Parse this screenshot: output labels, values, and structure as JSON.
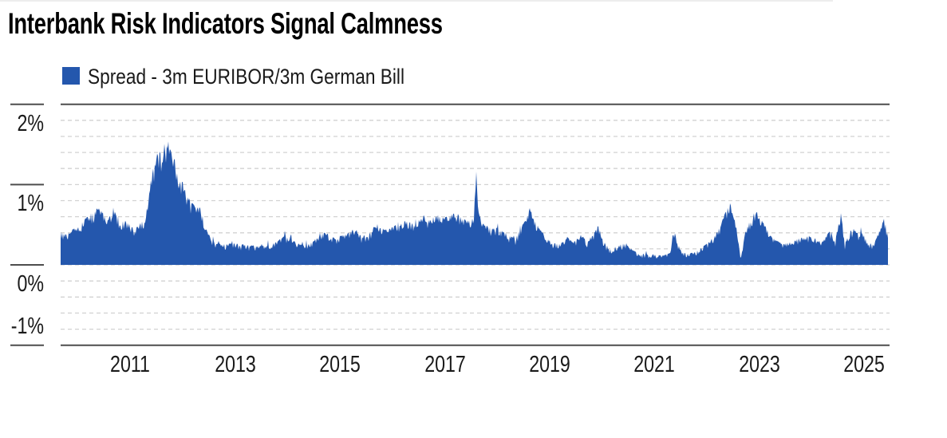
{
  "header": {
    "title": "Interbank Risk Indicators Signal Calmness"
  },
  "legend": {
    "label": "Spread - 3m EURIBOR/3m German Bill",
    "swatch_color": "#2457ad"
  },
  "style": {
    "fill_color": "#2457ad",
    "axis_line_color": "#4d4d4d",
    "gridline_color": "#d2d2d2",
    "text_color": "#1a1a1a",
    "title_color": "#000000",
    "top_rule_color": "#ededed",
    "background": "#ffffff"
  },
  "chart_data": {
    "type": "area",
    "title": "Interbank Risk Indicators Signal Calmness",
    "x_unit": "year",
    "x_range": [
      2009.67,
      2025.45
    ],
    "ylim_pct": [
      -1,
      2
    ],
    "baseline_pct": 0,
    "gridline_step_pct": 0.2,
    "grid": "dashed-horizontal",
    "legend_position": "top-left",
    "y_ticks": [
      {
        "value": 2,
        "label": "2%"
      },
      {
        "value": 1,
        "label": "1%"
      },
      {
        "value": 0,
        "label": "0%"
      },
      {
        "value": -1,
        "label": "-1%"
      }
    ],
    "x_ticks": [
      {
        "value": 2011,
        "label": "2011"
      },
      {
        "value": 2013,
        "label": "2013"
      },
      {
        "value": 2015,
        "label": "2015"
      },
      {
        "value": 2017,
        "label": "2017"
      },
      {
        "value": 2019,
        "label": "2019"
      },
      {
        "value": 2021,
        "label": "2021"
      },
      {
        "value": 2023,
        "label": "2023"
      },
      {
        "value": 2025,
        "label": "2025"
      }
    ],
    "series": [
      {
        "name": "Spread - 3m EURIBOR/3m German Bill",
        "color": "#2457ad",
        "points": [
          [
            2009.67,
            0.42
          ],
          [
            2009.78,
            0.4
          ],
          [
            2009.9,
            0.45
          ],
          [
            2010.0,
            0.48
          ],
          [
            2010.08,
            0.53
          ],
          [
            2010.18,
            0.62
          ],
          [
            2010.3,
            0.66
          ],
          [
            2010.4,
            0.71
          ],
          [
            2010.5,
            0.64
          ],
          [
            2010.58,
            0.55
          ],
          [
            2010.66,
            0.74
          ],
          [
            2010.73,
            0.62
          ],
          [
            2010.82,
            0.53
          ],
          [
            2010.9,
            0.56
          ],
          [
            2011.0,
            0.5
          ],
          [
            2011.1,
            0.45
          ],
          [
            2011.18,
            0.52
          ],
          [
            2011.25,
            0.56
          ],
          [
            2011.3,
            0.62
          ],
          [
            2011.36,
            0.95
          ],
          [
            2011.42,
            1.15
          ],
          [
            2011.48,
            1.32
          ],
          [
            2011.56,
            1.48
          ],
          [
            2011.61,
            1.38
          ],
          [
            2011.67,
            1.5
          ],
          [
            2011.72,
            1.55
          ],
          [
            2011.78,
            1.46
          ],
          [
            2011.86,
            1.3
          ],
          [
            2011.95,
            1.12
          ],
          [
            2012.05,
            0.96
          ],
          [
            2012.13,
            0.82
          ],
          [
            2012.2,
            0.76
          ],
          [
            2012.32,
            0.73
          ],
          [
            2012.4,
            0.58
          ],
          [
            2012.47,
            0.42
          ],
          [
            2012.55,
            0.32
          ],
          [
            2012.65,
            0.27
          ],
          [
            2012.8,
            0.26
          ],
          [
            2013.0,
            0.27
          ],
          [
            2013.2,
            0.25
          ],
          [
            2013.4,
            0.24
          ],
          [
            2013.6,
            0.25
          ],
          [
            2013.78,
            0.28
          ],
          [
            2013.95,
            0.37
          ],
          [
            2014.05,
            0.33
          ],
          [
            2014.2,
            0.27
          ],
          [
            2014.35,
            0.24
          ],
          [
            2014.5,
            0.3
          ],
          [
            2014.62,
            0.4
          ],
          [
            2014.75,
            0.4
          ],
          [
            2014.85,
            0.34
          ],
          [
            2015.0,
            0.36
          ],
          [
            2015.15,
            0.4
          ],
          [
            2015.28,
            0.47
          ],
          [
            2015.4,
            0.36
          ],
          [
            2015.55,
            0.38
          ],
          [
            2015.7,
            0.54
          ],
          [
            2015.78,
            0.46
          ],
          [
            2015.9,
            0.44
          ],
          [
            2016.0,
            0.47
          ],
          [
            2016.12,
            0.52
          ],
          [
            2016.25,
            0.56
          ],
          [
            2016.4,
            0.52
          ],
          [
            2016.6,
            0.62
          ],
          [
            2016.7,
            0.56
          ],
          [
            2016.85,
            0.63
          ],
          [
            2017.0,
            0.59
          ],
          [
            2017.12,
            0.63
          ],
          [
            2017.22,
            0.66
          ],
          [
            2017.32,
            0.58
          ],
          [
            2017.45,
            0.55
          ],
          [
            2017.55,
            0.62
          ],
          [
            2017.6,
            1.1
          ],
          [
            2017.66,
            0.62
          ],
          [
            2017.75,
            0.5
          ],
          [
            2017.9,
            0.46
          ],
          [
            2018.0,
            0.47
          ],
          [
            2018.12,
            0.42
          ],
          [
            2018.25,
            0.36
          ],
          [
            2018.35,
            0.33
          ],
          [
            2018.45,
            0.48
          ],
          [
            2018.55,
            0.56
          ],
          [
            2018.62,
            0.72
          ],
          [
            2018.7,
            0.58
          ],
          [
            2018.8,
            0.46
          ],
          [
            2018.92,
            0.36
          ],
          [
            2019.05,
            0.28
          ],
          [
            2019.2,
            0.26
          ],
          [
            2019.32,
            0.36
          ],
          [
            2019.45,
            0.28
          ],
          [
            2019.6,
            0.38
          ],
          [
            2019.72,
            0.3
          ],
          [
            2019.85,
            0.4
          ],
          [
            2019.93,
            0.5
          ],
          [
            2020.0,
            0.34
          ],
          [
            2020.1,
            0.22
          ],
          [
            2020.22,
            0.17
          ],
          [
            2020.35,
            0.26
          ],
          [
            2020.45,
            0.28
          ],
          [
            2020.55,
            0.2
          ],
          [
            2020.7,
            0.15
          ],
          [
            2020.85,
            0.13
          ],
          [
            2021.0,
            0.13
          ],
          [
            2021.15,
            0.12
          ],
          [
            2021.3,
            0.15
          ],
          [
            2021.37,
            0.44
          ],
          [
            2021.44,
            0.28
          ],
          [
            2021.52,
            0.16
          ],
          [
            2021.65,
            0.14
          ],
          [
            2021.8,
            0.17
          ],
          [
            2021.92,
            0.23
          ],
          [
            2022.05,
            0.3
          ],
          [
            2022.15,
            0.36
          ],
          [
            2022.25,
            0.48
          ],
          [
            2022.33,
            0.62
          ],
          [
            2022.44,
            0.77
          ],
          [
            2022.5,
            0.66
          ],
          [
            2022.57,
            0.45
          ],
          [
            2022.64,
            0.1
          ],
          [
            2022.72,
            0.38
          ],
          [
            2022.82,
            0.56
          ],
          [
            2022.94,
            0.69
          ],
          [
            2023.05,
            0.56
          ],
          [
            2023.15,
            0.44
          ],
          [
            2023.3,
            0.32
          ],
          [
            2023.45,
            0.26
          ],
          [
            2023.6,
            0.29
          ],
          [
            2023.75,
            0.33
          ],
          [
            2023.9,
            0.36
          ],
          [
            2024.0,
            0.37
          ],
          [
            2024.1,
            0.32
          ],
          [
            2024.2,
            0.29
          ],
          [
            2024.34,
            0.42
          ],
          [
            2024.45,
            0.31
          ],
          [
            2024.56,
            0.67
          ],
          [
            2024.63,
            0.26
          ],
          [
            2024.72,
            0.41
          ],
          [
            2024.8,
            0.46
          ],
          [
            2024.9,
            0.38
          ],
          [
            2024.97,
            0.43
          ],
          [
            2025.08,
            0.27
          ],
          [
            2025.18,
            0.27
          ],
          [
            2025.28,
            0.41
          ],
          [
            2025.38,
            0.6
          ],
          [
            2025.45,
            0.38
          ]
        ]
      }
    ],
    "render_texture": {
      "seed": 7,
      "dip_base": 0.035,
      "dip_scale": 0.16,
      "spike_prob": 0.035,
      "spike_min": 0.02,
      "spike_max": 0.07
    }
  }
}
